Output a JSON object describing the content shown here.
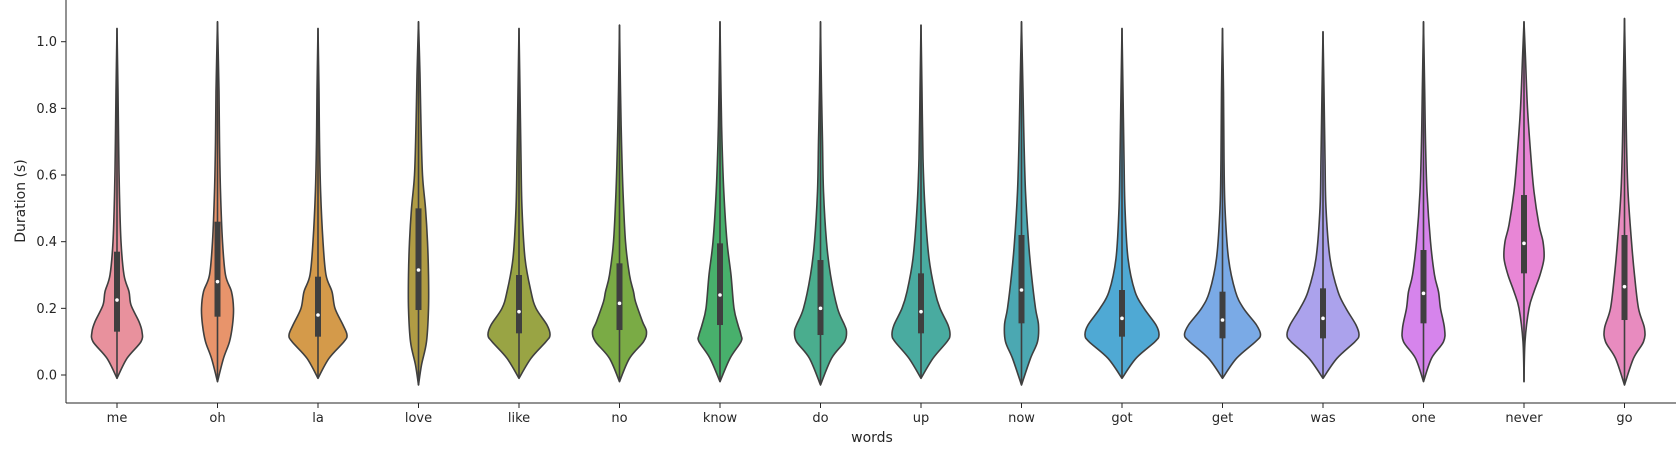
{
  "chart_data": {
    "type": "violin",
    "xlabel": "words",
    "ylabel": "Duration (s)",
    "ylim": [
      -0.08,
      1.08
    ],
    "yticks": [
      "0.0",
      "0.2",
      "0.4",
      "0.6",
      "0.8",
      "1.0"
    ],
    "categories": [
      "me",
      "oh",
      "la",
      "love",
      "like",
      "no",
      "know",
      "do",
      "up",
      "now",
      "got",
      "get",
      "was",
      "one",
      "never",
      "go"
    ],
    "colors": [
      "#e8919d",
      "#e8946b",
      "#d49a4a",
      "#b09c44",
      "#99a444",
      "#7aab45",
      "#48b06c",
      "#4aad8e",
      "#49aba0",
      "#4ba8b2",
      "#4fa9d4",
      "#7aaae6",
      "#aba2ec",
      "#d684ec",
      "#e886d6",
      "#e88bbf"
    ],
    "stats": [
      {
        "min": -0.01,
        "q1": 0.13,
        "median": 0.225,
        "q3": 0.37,
        "max": 1.04,
        "whisker": 0.7
      },
      {
        "min": -0.02,
        "q1": 0.175,
        "median": 0.28,
        "q3": 0.46,
        "max": 1.06,
        "whisker": 0.86
      },
      {
        "min": -0.01,
        "q1": 0.115,
        "median": 0.18,
        "q3": 0.295,
        "max": 1.04,
        "whisker": 0.53
      },
      {
        "min": -0.03,
        "q1": 0.195,
        "median": 0.315,
        "q3": 0.5,
        "max": 1.06,
        "whisker": 0.93
      },
      {
        "min": -0.01,
        "q1": 0.125,
        "median": 0.19,
        "q3": 0.3,
        "max": 1.04,
        "whisker": 0.55
      },
      {
        "min": -0.02,
        "q1": 0.135,
        "median": 0.215,
        "q3": 0.335,
        "max": 1.05,
        "whisker": 0.6
      },
      {
        "min": -0.02,
        "q1": 0.15,
        "median": 0.24,
        "q3": 0.395,
        "max": 1.06,
        "whisker": 0.73
      },
      {
        "min": -0.03,
        "q1": 0.12,
        "median": 0.2,
        "q3": 0.345,
        "max": 1.06,
        "whisker": 0.67
      },
      {
        "min": -0.01,
        "q1": 0.125,
        "median": 0.19,
        "q3": 0.305,
        "max": 1.05,
        "whisker": 0.56
      },
      {
        "min": -0.03,
        "q1": 0.155,
        "median": 0.255,
        "q3": 0.42,
        "max": 1.06,
        "whisker": 0.79
      },
      {
        "min": -0.01,
        "q1": 0.115,
        "median": 0.17,
        "q3": 0.255,
        "max": 1.04,
        "whisker": 0.43
      },
      {
        "min": -0.01,
        "q1": 0.11,
        "median": 0.165,
        "q3": 0.25,
        "max": 1.04,
        "whisker": 0.43
      },
      {
        "min": -0.01,
        "q1": 0.11,
        "median": 0.17,
        "q3": 0.26,
        "max": 1.03,
        "whisker": 0.45
      },
      {
        "min": -0.02,
        "q1": 0.155,
        "median": 0.245,
        "q3": 0.375,
        "max": 1.06,
        "whisker": 0.67
      },
      {
        "min": -0.02,
        "q1": 0.305,
        "median": 0.395,
        "q3": 0.54,
        "max": 1.06,
        "whisker": 0.87
      },
      {
        "min": -0.03,
        "q1": 0.165,
        "median": 0.265,
        "q3": 0.42,
        "max": 1.07,
        "whisker": 0.76
      }
    ],
    "shapes": [
      [
        [
          -0.01,
          0
        ],
        [
          0.05,
          10
        ],
        [
          0.1,
          24
        ],
        [
          0.13,
          25
        ],
        [
          0.16,
          22
        ],
        [
          0.21,
          14
        ],
        [
          0.25,
          12
        ],
        [
          0.3,
          7
        ],
        [
          0.4,
          4
        ],
        [
          0.55,
          2.4
        ],
        [
          0.7,
          1.6
        ],
        [
          0.85,
          1
        ],
        [
          1.04,
          0
        ]
      ],
      [
        [
          -0.02,
          0
        ],
        [
          0.05,
          6
        ],
        [
          0.1,
          12
        ],
        [
          0.15,
          15
        ],
        [
          0.2,
          16
        ],
        [
          0.25,
          14
        ],
        [
          0.3,
          8
        ],
        [
          0.4,
          5
        ],
        [
          0.55,
          3
        ],
        [
          0.7,
          2
        ],
        [
          0.85,
          1.5
        ],
        [
          1.06,
          0
        ]
      ],
      [
        [
          -0.01,
          0
        ],
        [
          0.05,
          11
        ],
        [
          0.1,
          26
        ],
        [
          0.12,
          29
        ],
        [
          0.15,
          25
        ],
        [
          0.2,
          17
        ],
        [
          0.25,
          14
        ],
        [
          0.3,
          8
        ],
        [
          0.4,
          5
        ],
        [
          0.55,
          2.6
        ],
        [
          0.7,
          1.5
        ],
        [
          0.85,
          1
        ],
        [
          1.04,
          0
        ]
      ],
      [
        [
          -0.03,
          0
        ],
        [
          0.03,
          3
        ],
        [
          0.1,
          8
        ],
        [
          0.2,
          10
        ],
        [
          0.3,
          10
        ],
        [
          0.4,
          9
        ],
        [
          0.5,
          7
        ],
        [
          0.6,
          4
        ],
        [
          0.75,
          2.5
        ],
        [
          0.9,
          1.5
        ],
        [
          1.06,
          0
        ]
      ],
      [
        [
          -0.01,
          0
        ],
        [
          0.05,
          12
        ],
        [
          0.1,
          27
        ],
        [
          0.12,
          31
        ],
        [
          0.15,
          28
        ],
        [
          0.2,
          17
        ],
        [
          0.25,
          12
        ],
        [
          0.35,
          6
        ],
        [
          0.5,
          3
        ],
        [
          0.65,
          2
        ],
        [
          0.85,
          1
        ],
        [
          1.04,
          0
        ]
      ],
      [
        [
          -0.02,
          0
        ],
        [
          0.05,
          10
        ],
        [
          0.1,
          24
        ],
        [
          0.13,
          27
        ],
        [
          0.16,
          23
        ],
        [
          0.22,
          16
        ],
        [
          0.25,
          14
        ],
        [
          0.3,
          10
        ],
        [
          0.4,
          6
        ],
        [
          0.55,
          3.5
        ],
        [
          0.7,
          2
        ],
        [
          0.85,
          1
        ],
        [
          1.05,
          0
        ]
      ],
      [
        [
          -0.02,
          0
        ],
        [
          0.05,
          10
        ],
        [
          0.1,
          21
        ],
        [
          0.12,
          21
        ],
        [
          0.15,
          18
        ],
        [
          0.2,
          14
        ],
        [
          0.3,
          11
        ],
        [
          0.4,
          7
        ],
        [
          0.55,
          3.8
        ],
        [
          0.7,
          2
        ],
        [
          0.85,
          1
        ],
        [
          1.06,
          0
        ]
      ],
      [
        [
          -0.03,
          0
        ],
        [
          0.05,
          11
        ],
        [
          0.1,
          24
        ],
        [
          0.13,
          26
        ],
        [
          0.15,
          24
        ],
        [
          0.2,
          17
        ],
        [
          0.3,
          10
        ],
        [
          0.4,
          6
        ],
        [
          0.55,
          3
        ],
        [
          0.7,
          2
        ],
        [
          0.85,
          1
        ],
        [
          1.06,
          0
        ]
      ],
      [
        [
          -0.01,
          0
        ],
        [
          0.05,
          12
        ],
        [
          0.1,
          26
        ],
        [
          0.12,
          29
        ],
        [
          0.15,
          27
        ],
        [
          0.2,
          19
        ],
        [
          0.25,
          14
        ],
        [
          0.35,
          8
        ],
        [
          0.5,
          4
        ],
        [
          0.65,
          2
        ],
        [
          0.85,
          1
        ],
        [
          1.05,
          0
        ]
      ],
      [
        [
          -0.03,
          0
        ],
        [
          0.05,
          9
        ],
        [
          0.1,
          16
        ],
        [
          0.15,
          17
        ],
        [
          0.2,
          14
        ],
        [
          0.3,
          10
        ],
        [
          0.4,
          7
        ],
        [
          0.55,
          4
        ],
        [
          0.7,
          2.5
        ],
        [
          0.85,
          1.5
        ],
        [
          1.06,
          0
        ]
      ],
      [
        [
          -0.01,
          0
        ],
        [
          0.05,
          14
        ],
        [
          0.1,
          33
        ],
        [
          0.12,
          37
        ],
        [
          0.15,
          34
        ],
        [
          0.2,
          22
        ],
        [
          0.25,
          13
        ],
        [
          0.35,
          6
        ],
        [
          0.5,
          3
        ],
        [
          0.65,
          2
        ],
        [
          0.85,
          1
        ],
        [
          1.04,
          0
        ]
      ],
      [
        [
          -0.01,
          0
        ],
        [
          0.05,
          14
        ],
        [
          0.1,
          33
        ],
        [
          0.12,
          38
        ],
        [
          0.15,
          34
        ],
        [
          0.2,
          21
        ],
        [
          0.25,
          13
        ],
        [
          0.35,
          6
        ],
        [
          0.5,
          2.5
        ],
        [
          0.65,
          1.5
        ],
        [
          0.85,
          1
        ],
        [
          1.04,
          0
        ]
      ],
      [
        [
          -0.01,
          0
        ],
        [
          0.05,
          14
        ],
        [
          0.1,
          32
        ],
        [
          0.12,
          36
        ],
        [
          0.15,
          33
        ],
        [
          0.2,
          23
        ],
        [
          0.25,
          15
        ],
        [
          0.35,
          7
        ],
        [
          0.5,
          3
        ],
        [
          0.65,
          2
        ],
        [
          0.85,
          1
        ],
        [
          1.03,
          0
        ]
      ],
      [
        [
          -0.02,
          0
        ],
        [
          0.05,
          8
        ],
        [
          0.1,
          20
        ],
        [
          0.14,
          21
        ],
        [
          0.2,
          17
        ],
        [
          0.25,
          15
        ],
        [
          0.3,
          11
        ],
        [
          0.4,
          7
        ],
        [
          0.55,
          3.5
        ],
        [
          0.7,
          2
        ],
        [
          0.85,
          1.2
        ],
        [
          1.06,
          0
        ]
      ],
      [
        [
          -0.02,
          0
        ],
        [
          0.1,
          1
        ],
        [
          0.2,
          5
        ],
        [
          0.25,
          10
        ],
        [
          0.3,
          16
        ],
        [
          0.35,
          20
        ],
        [
          0.4,
          19
        ],
        [
          0.45,
          15
        ],
        [
          0.55,
          10
        ],
        [
          0.65,
          7
        ],
        [
          0.8,
          3.5
        ],
        [
          0.95,
          1.5
        ],
        [
          1.06,
          0
        ]
      ],
      [
        [
          -0.03,
          0
        ],
        [
          0.05,
          9
        ],
        [
          0.1,
          19
        ],
        [
          0.14,
          20
        ],
        [
          0.2,
          14
        ],
        [
          0.3,
          10
        ],
        [
          0.4,
          7
        ],
        [
          0.55,
          3.5
        ],
        [
          0.7,
          2
        ],
        [
          0.85,
          1.3
        ],
        [
          1.07,
          0
        ]
      ]
    ]
  }
}
